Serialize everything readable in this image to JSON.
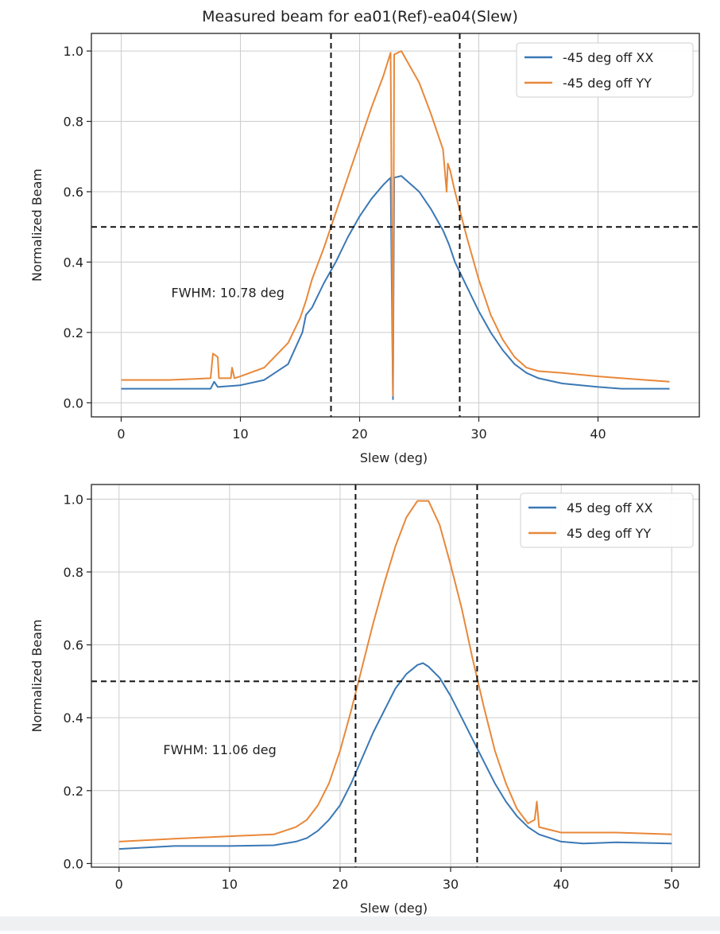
{
  "figure_title": "Measured beam for ea01(Ref)-ea04(Slew)",
  "colors": {
    "xx": "#3a78b5",
    "yy": "#e8883a",
    "grid": "#cccccc",
    "guide": "#111111"
  },
  "chart_data": [
    {
      "type": "line",
      "xlabel": "Slew (deg)",
      "ylabel": "Normalized Beam",
      "xlim": [
        -2.5,
        48.5
      ],
      "ylim": [
        -0.04,
        1.05
      ],
      "xticks": [
        0,
        10,
        20,
        30,
        40
      ],
      "xtick_labels": [
        "0",
        "10",
        "20",
        "30",
        "40"
      ],
      "yticks": [
        0.0,
        0.2,
        0.4,
        0.6,
        0.8,
        1.0
      ],
      "ytick_labels": [
        "0.0",
        "0.2",
        "0.4",
        "0.6",
        "0.8",
        "1.0"
      ],
      "grid": true,
      "legend_position": "top-right",
      "annotation": {
        "text": "FWHM: 10.78 deg",
        "x": 4.2,
        "y": 0.3
      },
      "hline": 0.5,
      "vlines": [
        17.6,
        28.4
      ],
      "series": [
        {
          "name": "-45 deg off XX",
          "color": "#3a78b5",
          "points": [
            [
              0,
              0.04
            ],
            [
              4,
              0.04
            ],
            [
              7.5,
              0.04
            ],
            [
              7.8,
              0.06
            ],
            [
              8.1,
              0.045
            ],
            [
              10,
              0.05
            ],
            [
              12,
              0.065
            ],
            [
              14,
              0.11
            ],
            [
              15.2,
              0.2
            ],
            [
              15.5,
              0.25
            ],
            [
              16,
              0.27
            ],
            [
              17,
              0.34
            ],
            [
              18,
              0.4
            ],
            [
              19,
              0.47
            ],
            [
              20,
              0.53
            ],
            [
              21,
              0.58
            ],
            [
              22,
              0.62
            ],
            [
              22.6,
              0.64
            ],
            [
              22.8,
              0.01
            ],
            [
              22.9,
              0.64
            ],
            [
              23.5,
              0.645
            ],
            [
              24,
              0.63
            ],
            [
              25,
              0.6
            ],
            [
              26,
              0.55
            ],
            [
              27,
              0.49
            ],
            [
              27.5,
              0.45
            ],
            [
              28,
              0.4
            ],
            [
              29,
              0.33
            ],
            [
              30,
              0.26
            ],
            [
              31,
              0.2
            ],
            [
              32,
              0.15
            ],
            [
              33,
              0.11
            ],
            [
              34,
              0.085
            ],
            [
              35,
              0.07
            ],
            [
              37,
              0.055
            ],
            [
              40,
              0.045
            ],
            [
              42,
              0.04
            ],
            [
              44,
              0.04
            ],
            [
              46,
              0.04
            ]
          ]
        },
        {
          "name": "-45 deg off YY",
          "color": "#e8883a",
          "points": [
            [
              0,
              0.065
            ],
            [
              4,
              0.065
            ],
            [
              7.5,
              0.07
            ],
            [
              7.7,
              0.14
            ],
            [
              8.1,
              0.13
            ],
            [
              8.2,
              0.07
            ],
            [
              9.2,
              0.07
            ],
            [
              9.3,
              0.1
            ],
            [
              9.5,
              0.07
            ],
            [
              10,
              0.075
            ],
            [
              12,
              0.1
            ],
            [
              14,
              0.17
            ],
            [
              15,
              0.24
            ],
            [
              15.5,
              0.29
            ],
            [
              16,
              0.35
            ],
            [
              17,
              0.44
            ],
            [
              18,
              0.54
            ],
            [
              19,
              0.64
            ],
            [
              20,
              0.74
            ],
            [
              21,
              0.84
            ],
            [
              22,
              0.93
            ],
            [
              22.6,
              0.995
            ],
            [
              22.8,
              0.02
            ],
            [
              22.9,
              0.99
            ],
            [
              23.5,
              1.0
            ],
            [
              24,
              0.97
            ],
            [
              25,
              0.91
            ],
            [
              26,
              0.82
            ],
            [
              27,
              0.72
            ],
            [
              27.3,
              0.6
            ],
            [
              27.4,
              0.68
            ],
            [
              27.6,
              0.66
            ],
            [
              28,
              0.6
            ],
            [
              29,
              0.47
            ],
            [
              30,
              0.35
            ],
            [
              31,
              0.25
            ],
            [
              32,
              0.18
            ],
            [
              33,
              0.13
            ],
            [
              34,
              0.1
            ],
            [
              35,
              0.09
            ],
            [
              37,
              0.085
            ],
            [
              40,
              0.075
            ],
            [
              42,
              0.07
            ],
            [
              44,
              0.065
            ],
            [
              46,
              0.06
            ]
          ]
        }
      ]
    },
    {
      "type": "line",
      "xlabel": "Slew (deg)",
      "ylabel": "Normalized Beam",
      "xlim": [
        -2.5,
        52.5
      ],
      "ylim": [
        -0.01,
        1.04
      ],
      "xticks": [
        0,
        10,
        20,
        30,
        40,
        50
      ],
      "xtick_labels": [
        "0",
        "10",
        "20",
        "30",
        "40",
        "50"
      ],
      "yticks": [
        0.0,
        0.2,
        0.4,
        0.6,
        0.8,
        1.0
      ],
      "ytick_labels": [
        "0.0",
        "0.2",
        "0.4",
        "0.6",
        "0.8",
        "1.0"
      ],
      "grid": true,
      "legend_position": "top-right",
      "annotation": {
        "text": "FWHM: 11.06 deg",
        "x": 4.0,
        "y": 0.3
      },
      "hline": 0.5,
      "vlines": [
        21.4,
        32.4
      ],
      "series": [
        {
          "name": "45 deg off XX",
          "color": "#3a78b5",
          "points": [
            [
              0,
              0.04
            ],
            [
              5,
              0.048
            ],
            [
              10,
              0.048
            ],
            [
              14,
              0.05
            ],
            [
              16,
              0.06
            ],
            [
              17,
              0.07
            ],
            [
              18,
              0.09
            ],
            [
              19,
              0.12
            ],
            [
              20,
              0.16
            ],
            [
              21,
              0.22
            ],
            [
              22,
              0.29
            ],
            [
              23,
              0.36
            ],
            [
              24,
              0.42
            ],
            [
              25,
              0.48
            ],
            [
              26,
              0.52
            ],
            [
              27,
              0.545
            ],
            [
              27.5,
              0.55
            ],
            [
              28,
              0.54
            ],
            [
              29,
              0.51
            ],
            [
              30,
              0.46
            ],
            [
              31,
              0.4
            ],
            [
              32,
              0.34
            ],
            [
              33,
              0.28
            ],
            [
              34,
              0.22
            ],
            [
              35,
              0.17
            ],
            [
              36,
              0.13
            ],
            [
              37,
              0.1
            ],
            [
              38,
              0.08
            ],
            [
              40,
              0.06
            ],
            [
              42,
              0.055
            ],
            [
              45,
              0.058
            ],
            [
              50,
              0.055
            ]
          ]
        },
        {
          "name": "45 deg off YY",
          "color": "#e8883a",
          "points": [
            [
              0,
              0.06
            ],
            [
              5,
              0.068
            ],
            [
              10,
              0.075
            ],
            [
              14,
              0.08
            ],
            [
              16,
              0.1
            ],
            [
              17,
              0.12
            ],
            [
              18,
              0.16
            ],
            [
              19,
              0.22
            ],
            [
              20,
              0.31
            ],
            [
              21,
              0.42
            ],
            [
              22,
              0.54
            ],
            [
              23,
              0.66
            ],
            [
              24,
              0.77
            ],
            [
              25,
              0.87
            ],
            [
              26,
              0.95
            ],
            [
              27,
              0.995
            ],
            [
              28,
              0.995
            ],
            [
              29,
              0.93
            ],
            [
              30,
              0.82
            ],
            [
              31,
              0.7
            ],
            [
              32,
              0.56
            ],
            [
              33,
              0.43
            ],
            [
              34,
              0.31
            ],
            [
              35,
              0.22
            ],
            [
              36,
              0.15
            ],
            [
              37,
              0.11
            ],
            [
              37.6,
              0.12
            ],
            [
              37.8,
              0.17
            ],
            [
              38,
              0.1
            ],
            [
              40,
              0.085
            ],
            [
              45,
              0.085
            ],
            [
              50,
              0.08
            ]
          ]
        }
      ]
    }
  ]
}
